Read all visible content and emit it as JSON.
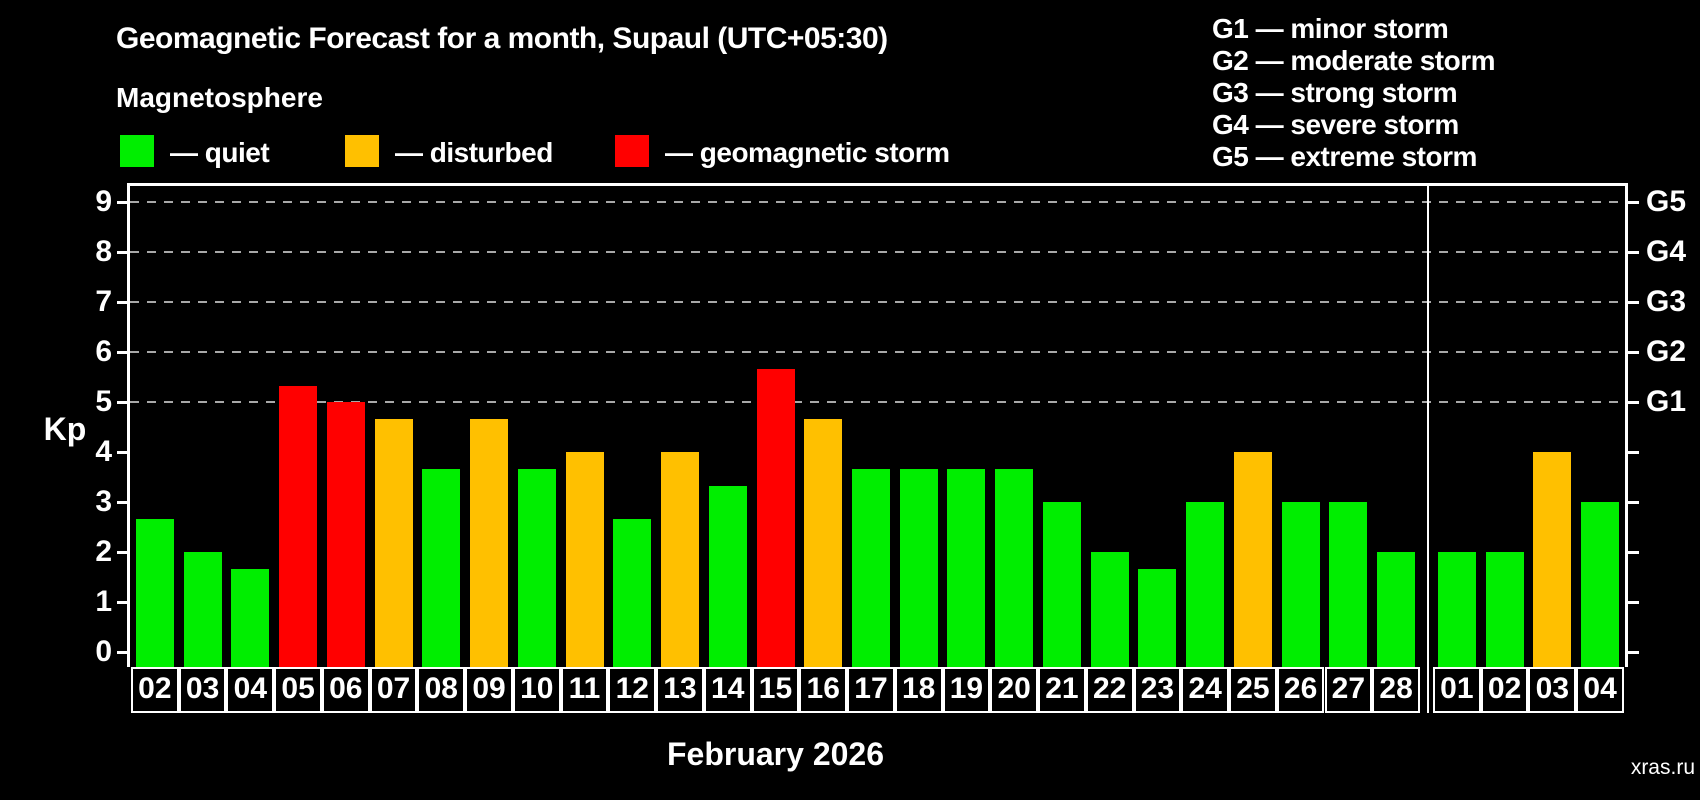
{
  "header": {
    "title": "Geomagnetic Forecast for a month, Supaul (UTC+05:30)",
    "subtitle": "Magnetosphere"
  },
  "legend": {
    "items": [
      {
        "key": "quiet",
        "label": "— quiet"
      },
      {
        "key": "disturbed",
        "label": "— disturbed"
      },
      {
        "key": "storm",
        "label": "— geomagnetic storm"
      }
    ]
  },
  "g_legend": {
    "items": [
      "G1 — minor storm",
      "G2 — moderate storm",
      "G3 — strong storm",
      "G4 — severe storm",
      "G5 — extreme storm"
    ]
  },
  "colors": {
    "quiet": "#00ee00",
    "disturbed": "#ffc000",
    "storm": "#ff0000",
    "background": "#000000",
    "axis": "#ffffff",
    "grid": "#a8a8a8",
    "watermark": "#8f8f8f"
  },
  "chart_data": {
    "type": "bar",
    "title": "Geomagnetic Forecast for a month, Supaul (UTC+05:30)",
    "xlabel": "February 2026",
    "ylabel": "Kp",
    "ylim": [
      0,
      9
    ],
    "yticks": [
      0,
      1,
      2,
      3,
      4,
      5,
      6,
      7,
      8,
      9
    ],
    "gridlines_at": [
      5,
      6,
      7,
      8,
      9
    ],
    "grid_style": "dashed",
    "legend_position": "top-left",
    "right_axis": [
      {
        "value": 5,
        "label": "G1"
      },
      {
        "value": 6,
        "label": "G2"
      },
      {
        "value": 7,
        "label": "G3"
      },
      {
        "value": 8,
        "label": "G4"
      },
      {
        "value": 9,
        "label": "G5"
      }
    ],
    "month_break_index": 27,
    "bars": [
      {
        "date": "02",
        "kp": 2.67,
        "status": "quiet"
      },
      {
        "date": "03",
        "kp": 2.0,
        "status": "quiet"
      },
      {
        "date": "04",
        "kp": 1.67,
        "status": "quiet"
      },
      {
        "date": "05",
        "kp": 5.33,
        "status": "storm"
      },
      {
        "date": "06",
        "kp": 5.0,
        "status": "storm"
      },
      {
        "date": "07",
        "kp": 4.67,
        "status": "disturbed"
      },
      {
        "date": "08",
        "kp": 3.67,
        "status": "quiet"
      },
      {
        "date": "09",
        "kp": 4.67,
        "status": "disturbed"
      },
      {
        "date": "10",
        "kp": 3.67,
        "status": "quiet"
      },
      {
        "date": "11",
        "kp": 4.0,
        "status": "disturbed"
      },
      {
        "date": "12",
        "kp": 2.67,
        "status": "quiet"
      },
      {
        "date": "13",
        "kp": 4.0,
        "status": "disturbed"
      },
      {
        "date": "14",
        "kp": 3.33,
        "status": "quiet"
      },
      {
        "date": "15",
        "kp": 5.67,
        "status": "storm"
      },
      {
        "date": "16",
        "kp": 4.67,
        "status": "disturbed"
      },
      {
        "date": "17",
        "kp": 3.67,
        "status": "quiet"
      },
      {
        "date": "18",
        "kp": 3.67,
        "status": "quiet"
      },
      {
        "date": "19",
        "kp": 3.67,
        "status": "quiet"
      },
      {
        "date": "20",
        "kp": 3.67,
        "status": "quiet"
      },
      {
        "date": "21",
        "kp": 3.0,
        "status": "quiet"
      },
      {
        "date": "22",
        "kp": 2.0,
        "status": "quiet"
      },
      {
        "date": "23",
        "kp": 1.67,
        "status": "quiet"
      },
      {
        "date": "24",
        "kp": 3.0,
        "status": "quiet"
      },
      {
        "date": "25",
        "kp": 4.0,
        "status": "disturbed"
      },
      {
        "date": "26",
        "kp": 3.0,
        "status": "quiet"
      },
      {
        "date": "27",
        "kp": 3.0,
        "status": "quiet"
      },
      {
        "date": "28",
        "kp": 2.0,
        "status": "quiet"
      },
      {
        "date": "01",
        "kp": 2.0,
        "status": "quiet"
      },
      {
        "date": "02",
        "kp": 2.0,
        "status": "quiet"
      },
      {
        "date": "03",
        "kp": 4.0,
        "status": "disturbed"
      },
      {
        "date": "04",
        "kp": 3.0,
        "status": "quiet"
      }
    ]
  },
  "footer": {
    "month_label": "February 2026",
    "watermark": "xras.ru"
  }
}
